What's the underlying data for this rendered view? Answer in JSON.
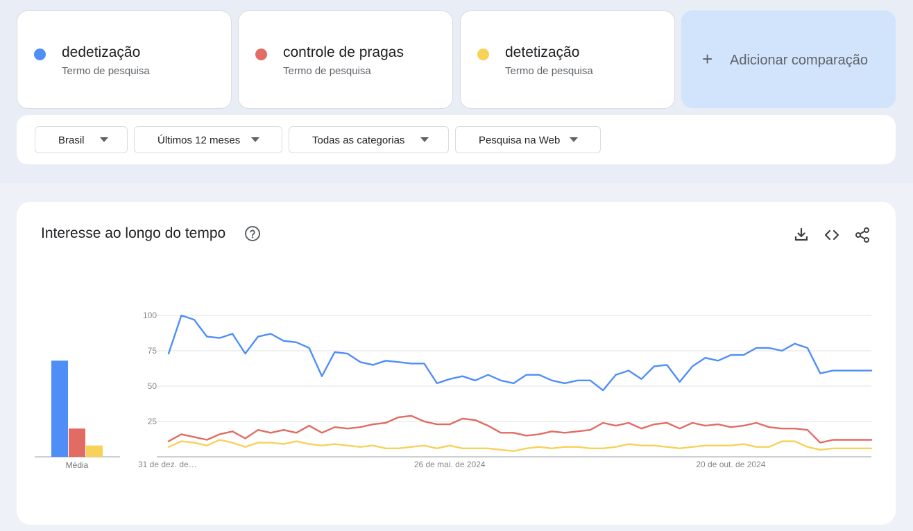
{
  "terms": [
    {
      "name": "dedetização",
      "type": "Termo de pesquisa",
      "color": "#4f8ef7"
    },
    {
      "name": "controle de pragas",
      "type": "Termo de pesquisa",
      "color": "#e26b63"
    },
    {
      "name": "detetização",
      "type": "Termo de pesquisa",
      "color": "#f8d158"
    }
  ],
  "add_comparison": {
    "icon": "plus-icon",
    "label": "Adicionar comparação"
  },
  "filters": [
    {
      "label": "Brasil",
      "icon": "chevron-down-icon"
    },
    {
      "label": "Últimos 12 meses",
      "icon": "chevron-down-icon"
    },
    {
      "label": "Todas as categorias",
      "icon": "chevron-down-icon"
    },
    {
      "label": "Pesquisa na Web",
      "icon": "chevron-down-icon"
    }
  ],
  "chart_card": {
    "title": "Interesse ao longo do tempo",
    "icons": [
      "help-icon",
      "download-icon",
      "embed-icon",
      "share-icon"
    ]
  },
  "chart_data": [
    {
      "type": "bar",
      "categories": [
        "Média"
      ],
      "series": [
        {
          "name": "dedetização",
          "values": [
            68
          ]
        },
        {
          "name": "controle de pragas",
          "values": [
            20
          ]
        },
        {
          "name": "detetização",
          "values": [
            8
          ]
        }
      ],
      "ylim": [
        0,
        100
      ]
    },
    {
      "type": "line",
      "x": [
        0,
        1,
        2,
        3,
        4,
        5,
        6,
        7,
        8,
        9,
        10,
        11,
        12,
        13,
        14,
        15,
        16,
        17,
        18,
        19,
        20,
        21,
        22,
        23,
        24,
        25,
        26,
        27,
        28,
        29,
        30,
        31,
        32,
        33,
        34,
        35,
        36,
        37,
        38,
        39,
        40,
        41,
        42,
        43,
        44,
        45,
        46,
        47,
        48,
        49,
        50,
        51,
        52,
        53,
        54,
        55
      ],
      "x_ticks": [
        {
          "x": 0,
          "label": "31 de dez. de…"
        },
        {
          "x": 22,
          "label": "26 de mai. de 2024"
        },
        {
          "x": 44,
          "label": "20 de out. de 2024"
        }
      ],
      "y_ticks": [
        25,
        50,
        75,
        100
      ],
      "ylim": [
        0,
        100
      ],
      "grid": true,
      "series": [
        {
          "name": "dedetização",
          "color": "#4f8ef7",
          "values": [
            73,
            100,
            97,
            85,
            84,
            87,
            73,
            85,
            87,
            82,
            81,
            77,
            57,
            74,
            73,
            67,
            65,
            68,
            67,
            66,
            66,
            52,
            55,
            57,
            54,
            58,
            54,
            52,
            58,
            58,
            54,
            52,
            54,
            54,
            47,
            58,
            61,
            55,
            64,
            65,
            53,
            64,
            70,
            68,
            72,
            72,
            77,
            77,
            75,
            80,
            77,
            59,
            61,
            61,
            61,
            61
          ]
        },
        {
          "name": "controle de pragas",
          "color": "#e26b63",
          "values": [
            11,
            16,
            14,
            12,
            16,
            18,
            13,
            19,
            17,
            19,
            17,
            22,
            17,
            21,
            20,
            21,
            23,
            24,
            28,
            29,
            25,
            23,
            23,
            27,
            26,
            22,
            17,
            17,
            15,
            16,
            18,
            17,
            18,
            19,
            24,
            22,
            24,
            20,
            23,
            24,
            20,
            24,
            22,
            23,
            21,
            22,
            24,
            21,
            20,
            20,
            19,
            10,
            12,
            12,
            12,
            12
          ]
        },
        {
          "name": "detetização",
          "color": "#f8d158",
          "values": [
            7,
            11,
            10,
            8,
            12,
            10,
            7,
            10,
            10,
            9,
            11,
            9,
            8,
            9,
            8,
            7,
            8,
            6,
            6,
            7,
            8,
            6,
            8,
            6,
            6,
            6,
            5,
            4,
            6,
            7,
            6,
            7,
            7,
            6,
            6,
            7,
            9,
            8,
            8,
            7,
            6,
            7,
            8,
            8,
            8,
            9,
            7,
            7,
            11,
            11,
            7,
            5,
            6,
            6,
            6,
            6
          ]
        }
      ]
    }
  ]
}
